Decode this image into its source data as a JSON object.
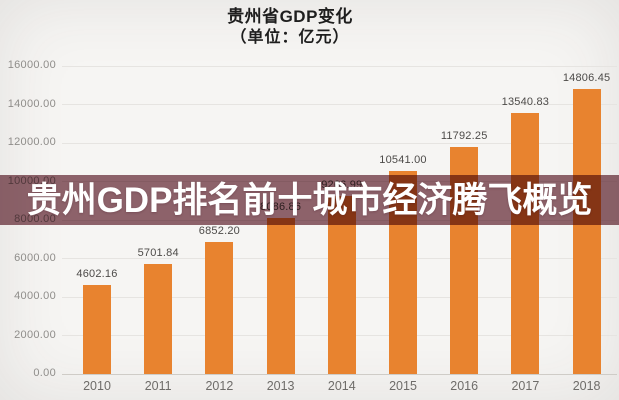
{
  "header": {
    "title": "贵州省GDP变化",
    "subtitle": "（单位：亿元）"
  },
  "banner": {
    "text": "贵州GDP排名前十城市经济腾飞概览",
    "bg_color": "#92666f",
    "text_color": "#ffffff"
  },
  "chart_data": {
    "type": "bar",
    "title": "贵州省GDP变化",
    "subtitle": "（单位：亿元）",
    "categories": [
      "2010",
      "2011",
      "2012",
      "2013",
      "2014",
      "2015",
      "2016",
      "2017",
      "2018"
    ],
    "values": [
      4602.16,
      5701.84,
      6852.2,
      8086.86,
      9266.99,
      10541.0,
      11792.25,
      13540.83,
      14806.45
    ],
    "value_labels": [
      "4602.16",
      "5701.84",
      "6852.20",
      "8086.86",
      "9266.99",
      "10541.00",
      "11792.25",
      "13540.83",
      "14806.45"
    ],
    "xlabel": "",
    "ylabel": "",
    "ylim": [
      0,
      16000
    ],
    "ytick_step": 2000,
    "ytick_labels": [
      "0.00",
      "2000.00",
      "4000.00",
      "6000.00",
      "8000.00",
      "10000.00",
      "12000.00",
      "14000.00",
      "16000.00"
    ],
    "bar_color": "#e8832f",
    "grid": true,
    "legend": "none"
  }
}
